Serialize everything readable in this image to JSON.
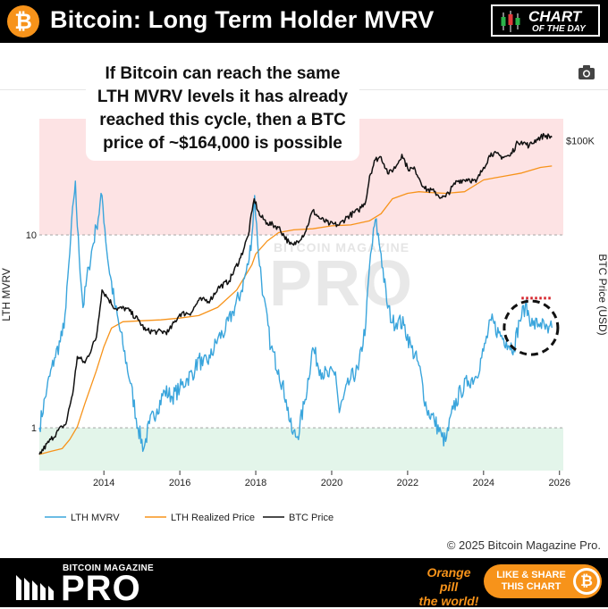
{
  "header": {
    "title": "Bitcoin: Long Term Holder MVRV",
    "btc_symbol": "₿",
    "chart_of_day_line1": "CHART",
    "chart_of_day_line2": "OF THE DAY"
  },
  "annotation": {
    "lines": [
      "If Bitcoin can reach the same",
      "LTH MVRV levels it has already",
      "reached this cycle, then a BTC",
      "price of ~$164,000 is possible"
    ]
  },
  "watermark": {
    "small": "BITCOIN MAGAZINE",
    "big": "PRO"
  },
  "footer": {
    "brand_small": "BITCOIN MAGAZINE",
    "brand_big": "PRO",
    "orange_line1": "Orange pill",
    "orange_line2": "the world!",
    "share_line1": "LIKE & SHARE",
    "share_line2": "THIS CHART",
    "coin_symbol": "₿"
  },
  "copyright": "© 2025 Bitcoin Magazine Pro.",
  "colors": {
    "lth_mvrv": "#3aa5dc",
    "lth_realized": "#f7931a",
    "btc_price": "#111111",
    "overvalued_zone": "#fde3e4",
    "undervalued_zone": "#e3f5ea",
    "target_line": "#d6232a",
    "accent": "#f7931a"
  },
  "chart_data": {
    "type": "line",
    "xlabel": "",
    "ylabel_left": "LTH MVRV",
    "ylabel_right": "BTC Price (USD)",
    "y_scale": "log",
    "x_range": [
      2012.3,
      2026.1
    ],
    "y_left_range": [
      0.6,
      40
    ],
    "y_right_range": [
      3,
      200000
    ],
    "x_ticks": [
      2014,
      2016,
      2018,
      2020,
      2022,
      2024,
      2026
    ],
    "y_left_ticks": [
      {
        "value": 1,
        "label": "1"
      },
      {
        "value": 10,
        "label": "10"
      }
    ],
    "y_right_ticks": [
      {
        "value": 100000,
        "label": "$100K"
      }
    ],
    "zones": [
      {
        "from": 10,
        "to": 40,
        "color": "#fde3e4"
      },
      {
        "from": 0.6,
        "to": 1,
        "color": "#e3f5ea"
      }
    ],
    "reference_lines": [
      {
        "value": 10
      },
      {
        "value": 1
      }
    ],
    "target_line": {
      "x_from": 2025.0,
      "x_to": 2025.8,
      "value": 4.7
    },
    "highlight_circle": {
      "x": 2025.25,
      "y": 3.3
    },
    "legend": [
      {
        "name": "LTH MVRV",
        "color": "#3aa5dc"
      },
      {
        "name": "LTH Realized Price",
        "color": "#f7931a"
      },
      {
        "name": "BTC Price",
        "color": "#111111"
      }
    ],
    "legend_position": "bottom",
    "series": [
      {
        "name": "LTH MVRV",
        "axis": "left",
        "x": [
          2012.3,
          2012.5,
          2012.7,
          2012.9,
          2013.0,
          2013.1,
          2013.2,
          2013.25,
          2013.3,
          2013.45,
          2013.6,
          2013.8,
          2013.95,
          2014.1,
          2014.3,
          2014.5,
          2014.7,
          2014.9,
          2015.05,
          2015.2,
          2015.4,
          2015.6,
          2015.8,
          2016.0,
          2016.2,
          2016.4,
          2016.5,
          2016.6,
          2016.8,
          2017.0,
          2017.2,
          2017.4,
          2017.6,
          2017.8,
          2017.9,
          2017.97,
          2018.05,
          2018.2,
          2018.4,
          2018.6,
          2018.8,
          2018.95,
          2019.1,
          2019.3,
          2019.5,
          2019.7,
          2019.9,
          2020.1,
          2020.2,
          2020.3,
          2020.5,
          2020.7,
          2020.9,
          2021.0,
          2021.15,
          2021.3,
          2021.45,
          2021.6,
          2021.75,
          2021.9,
          2022.1,
          2022.3,
          2022.5,
          2022.7,
          2022.9,
          2023.0,
          2023.2,
          2023.4,
          2023.6,
          2023.8,
          2024.0,
          2024.2,
          2024.4,
          2024.6,
          2024.8,
          2024.95,
          2025.1,
          2025.3,
          2025.5,
          2025.7,
          2025.8
        ],
        "values": [
          1.0,
          1.6,
          2.3,
          3.0,
          4.2,
          8.0,
          15.0,
          19.0,
          11.0,
          4.2,
          6.8,
          11.0,
          16.0,
          7.5,
          4.2,
          2.7,
          1.7,
          1.0,
          0.78,
          1.05,
          1.25,
          1.55,
          1.45,
          1.6,
          1.8,
          2.0,
          2.3,
          2.1,
          2.3,
          2.9,
          3.2,
          4.0,
          5.0,
          7.0,
          10.0,
          16.0,
          9.0,
          4.8,
          2.6,
          2.0,
          1.4,
          0.95,
          0.9,
          1.4,
          2.6,
          2.0,
          1.85,
          1.95,
          1.2,
          1.4,
          1.8,
          2.0,
          3.5,
          7.0,
          12.0,
          8.0,
          4.5,
          3.5,
          3.6,
          3.4,
          2.6,
          2.1,
          1.25,
          1.1,
          0.9,
          0.85,
          1.25,
          1.55,
          1.75,
          1.85,
          2.5,
          3.6,
          3.1,
          2.8,
          2.6,
          3.6,
          4.3,
          3.4,
          3.5,
          3.1,
          3.3
        ]
      },
      {
        "name": "LTH Realized Price",
        "axis": "right",
        "x": [
          2012.3,
          2012.6,
          2012.9,
          2013.1,
          2013.3,
          2013.5,
          2013.8,
          2014.0,
          2014.2,
          2014.5,
          2015.0,
          2015.5,
          2016.0,
          2016.5,
          2017.0,
          2017.5,
          2017.9,
          2018.0,
          2018.3,
          2018.6,
          2019.0,
          2019.5,
          2020.0,
          2020.5,
          2021.0,
          2021.3,
          2021.6,
          2022.0,
          2022.3,
          2022.6,
          2023.0,
          2023.5,
          2024.0,
          2024.3,
          2024.6,
          2025.0,
          2025.5,
          2025.8
        ],
        "values": [
          5,
          5.5,
          6,
          8,
          12,
          25,
          70,
          150,
          270,
          330,
          340,
          350,
          370,
          400,
          520,
          900,
          2000,
          2800,
          4200,
          5500,
          6000,
          6200,
          6800,
          7000,
          8000,
          10000,
          16000,
          19000,
          20000,
          19500,
          19000,
          20000,
          29000,
          31000,
          33000,
          36000,
          43000,
          45000
        ]
      },
      {
        "name": "BTC Price",
        "axis": "right",
        "x": [
          2012.3,
          2012.6,
          2012.9,
          2013.0,
          2013.2,
          2013.3,
          2013.5,
          2013.8,
          2013.95,
          2014.1,
          2014.3,
          2014.6,
          2014.9,
          2015.1,
          2015.4,
          2015.7,
          2016.0,
          2016.3,
          2016.5,
          2016.8,
          2017.0,
          2017.3,
          2017.6,
          2017.8,
          2017.96,
          2018.1,
          2018.3,
          2018.6,
          2018.9,
          2019.0,
          2019.3,
          2019.5,
          2019.7,
          2019.95,
          2020.2,
          2020.4,
          2020.7,
          2020.9,
          2021.0,
          2021.15,
          2021.3,
          2021.5,
          2021.7,
          2021.85,
          2022.0,
          2022.2,
          2022.45,
          2022.7,
          2022.9,
          2023.0,
          2023.3,
          2023.6,
          2023.8,
          2024.0,
          2024.2,
          2024.5,
          2024.7,
          2024.9,
          2025.0,
          2025.2,
          2025.4,
          2025.6,
          2025.8
        ],
        "values": [
          5,
          8,
          12,
          13,
          40,
          110,
          90,
          200,
          900,
          700,
          500,
          500,
          350,
          250,
          240,
          240,
          420,
          440,
          650,
          650,
          950,
          1200,
          2500,
          5000,
          16000,
          9500,
          7500,
          6500,
          3800,
          3700,
          5500,
          11000,
          8500,
          7200,
          7000,
          9000,
          11000,
          15000,
          33000,
          55000,
          60000,
          35000,
          45000,
          65000,
          42000,
          40000,
          22000,
          20000,
          16500,
          17000,
          28000,
          30000,
          27000,
          43000,
          68000,
          60000,
          62000,
          95000,
          98000,
          85000,
          105000,
          118000,
          112000
        ]
      }
    ]
  }
}
